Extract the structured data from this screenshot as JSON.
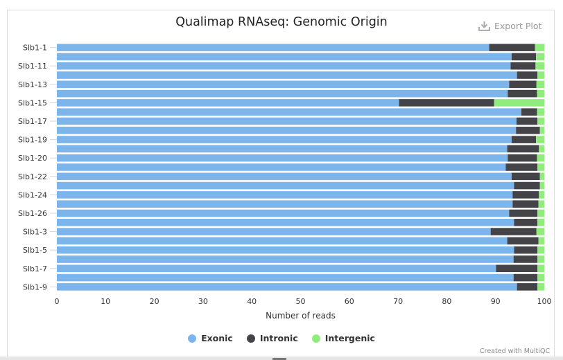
{
  "header": {
    "title": "Qualimap RNAseq: Genomic Origin",
    "export_label": "Export Plot"
  },
  "footer": {
    "credit": "Created with MultiQC"
  },
  "colors": {
    "exonic": "#7cb5ec",
    "intronic": "#434348",
    "intergenic": "#90ed7d"
  },
  "chart_data": {
    "type": "bar",
    "orientation": "horizontal",
    "stacked": true,
    "title": "Qualimap RNAseq: Genomic Origin",
    "xlabel": "Number of reads",
    "ylabel": "",
    "xlim": [
      0,
      100
    ],
    "x_ticks": [
      "0",
      "10",
      "20",
      "30",
      "40",
      "50",
      "60",
      "70",
      "80",
      "90",
      "100"
    ],
    "legend_position": "bottom-center",
    "categories": [
      "Slb1-1",
      "",
      "Slb1-11",
      "",
      "Slb1-13",
      "",
      "Slb1-15",
      "",
      "Slb1-17",
      "",
      "Slb1-19",
      "",
      "Slb1-20",
      "",
      "Slb1-22",
      "",
      "Slb1-24",
      "",
      "Slb1-26",
      "",
      "Slb1-3",
      "",
      "Slb1-5",
      "",
      "Slb1-7",
      "",
      "Slb1-9"
    ],
    "series": [
      {
        "name": "Exonic",
        "values": [
          88.7,
          93.3,
          93.1,
          94.4,
          92.8,
          92.5,
          70.2,
          95.3,
          94.3,
          94.2,
          93.3,
          92.4,
          92.5,
          92.1,
          93.3,
          93.8,
          93.5,
          93.5,
          92.8,
          93.8,
          89.0,
          92.4,
          93.8,
          93.7,
          90.1,
          93.7,
          94.4
        ],
        "color": "#7cb5ec"
      },
      {
        "name": "Intronic",
        "values": [
          9.4,
          5.0,
          5.1,
          4.2,
          5.6,
          6.0,
          19.5,
          3.2,
          4.3,
          4.9,
          5.0,
          6.5,
          6.0,
          6.5,
          5.8,
          5.3,
          5.4,
          5.3,
          5.8,
          4.8,
          9.4,
          6.4,
          4.8,
          4.9,
          8.5,
          4.9,
          4.2
        ],
        "color": "#434348"
      },
      {
        "name": "Intergenic",
        "values": [
          1.9,
          1.7,
          1.8,
          1.4,
          1.6,
          1.5,
          10.3,
          1.5,
          1.4,
          0.9,
          1.7,
          1.1,
          1.5,
          1.4,
          0.9,
          0.9,
          1.1,
          1.2,
          1.4,
          1.4,
          1.6,
          1.2,
          1.4,
          1.4,
          1.4,
          1.4,
          1.4
        ],
        "color": "#90ed7d"
      }
    ]
  }
}
